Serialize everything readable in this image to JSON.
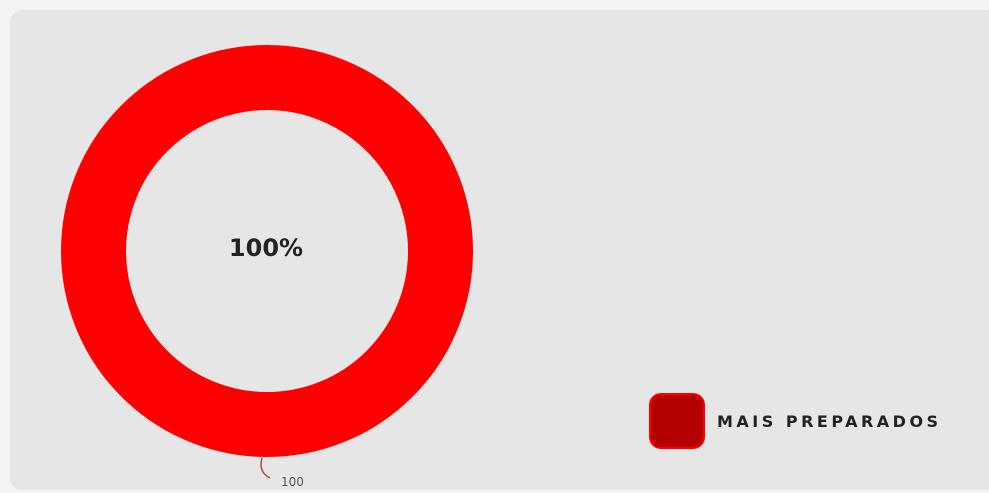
{
  "chart_data": {
    "type": "pie",
    "donut": true,
    "series": [
      {
        "name": "MAIS PREPARADOS",
        "values": [
          100
        ],
        "color": "#ff0000",
        "legend_color": "#b30000",
        "data_label": "100"
      }
    ],
    "center_text": "100%",
    "legend": {
      "placement": "bottom-right",
      "items": [
        "MAIS PREPARADOS"
      ]
    }
  }
}
